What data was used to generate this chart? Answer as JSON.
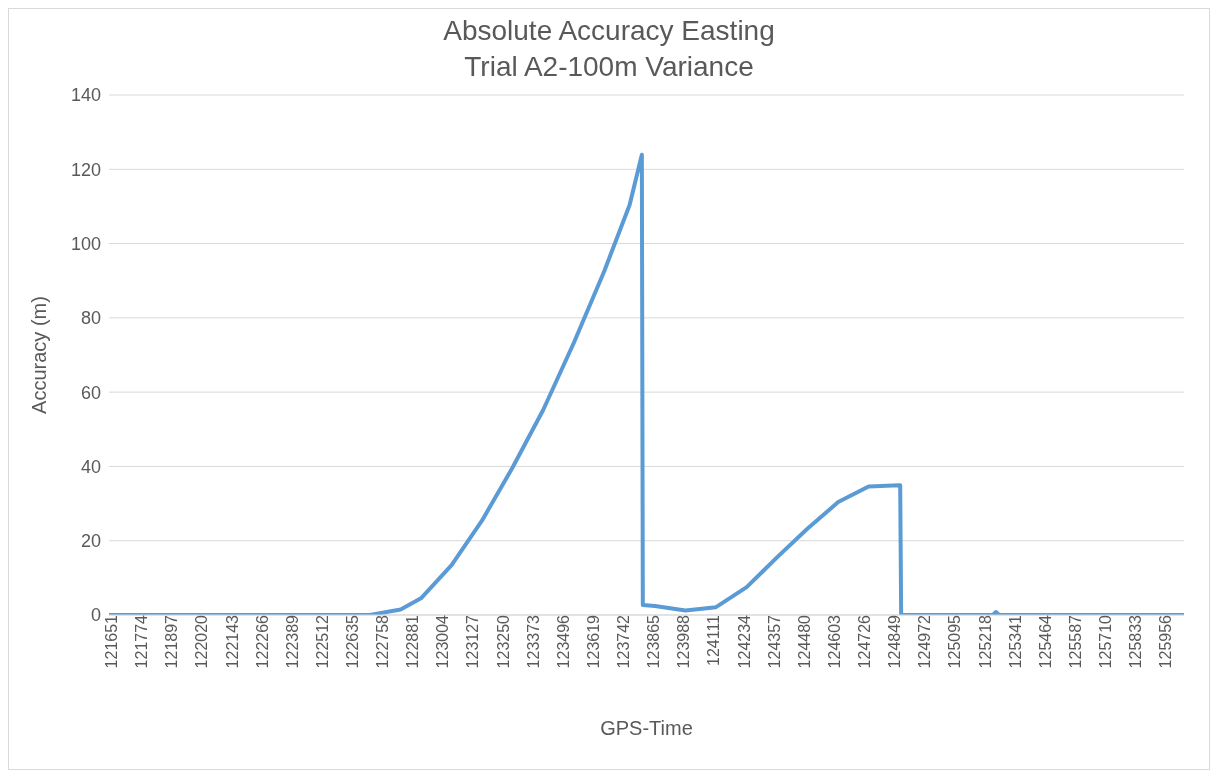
{
  "chart_data": {
    "type": "line",
    "title": "Absolute Accuracy  Easting",
    "subtitle": "Trial A2-100m Variance",
    "xlabel": "GPS-Time",
    "ylabel": "Accuracy (m)",
    "x": [
      121640,
      122000,
      122400,
      122706,
      122831,
      122914,
      123039,
      123163,
      123288,
      123413,
      123537,
      123662,
      123766,
      123816,
      123820,
      123870,
      123994,
      124119,
      124244,
      124368,
      124493,
      124618,
      124742,
      124867,
      124871,
      124875,
      125000,
      125250,
      125262,
      125275,
      125600,
      126030
    ],
    "series": [
      {
        "color": "#5b9bd5",
        "values": [
          0,
          0,
          0,
          0,
          1.5,
          4.5,
          13.4,
          25.4,
          39.7,
          55.2,
          73.1,
          92.5,
          110.4,
          123.9,
          2.7,
          2.4,
          1.2,
          2.1,
          7.5,
          15.5,
          23.3,
          30.4,
          34.6,
          34.9,
          34.9,
          0,
          0,
          0,
          0.8,
          0,
          0,
          0
        ]
      }
    ],
    "xlim": [
      121640,
      126030
    ],
    "xticks": [
      121651,
      121774,
      121897,
      122020,
      122143,
      122266,
      122389,
      122512,
      122635,
      122758,
      122881,
      123004,
      123127,
      123250,
      123373,
      123496,
      123619,
      123742,
      123865,
      123988,
      124111,
      124234,
      124357,
      124480,
      124603,
      124726,
      124849,
      124972,
      125095,
      125218,
      125341,
      125464,
      125587,
      125710,
      125833,
      125956
    ],
    "ylim": [
      0,
      140
    ],
    "yticks": [
      0,
      20,
      40,
      60,
      80,
      100,
      120,
      140
    ],
    "grid": "y",
    "legend": false,
    "marker": "none",
    "line_style": "solid"
  }
}
